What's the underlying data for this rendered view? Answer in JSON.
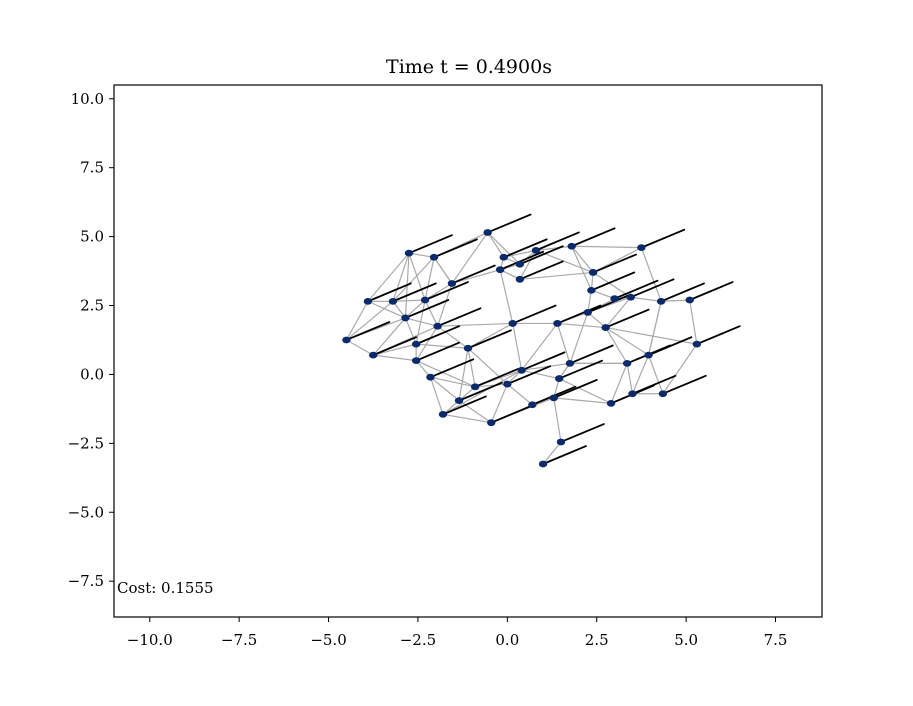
{
  "chart_data": {
    "type": "scatter",
    "title": "Time t = 0.4900s",
    "annotation": "Cost: 0.1555",
    "xlim": [
      -11.0,
      8.8
    ],
    "ylim": [
      -8.8,
      10.5
    ],
    "x_ticks": [
      -10.0,
      -7.5,
      -5.0,
      -2.5,
      0.0,
      2.5,
      5.0,
      7.5
    ],
    "x_tick_labels": [
      "−10.0",
      "−7.5",
      "−5.0",
      "−2.5",
      "0.0",
      "2.5",
      "5.0",
      "7.5"
    ],
    "y_ticks": [
      10.0,
      7.5,
      5.0,
      2.5,
      0.0,
      -2.5,
      -5.0,
      -7.5
    ],
    "y_tick_labels": [
      "10.0",
      "7.5",
      "5.0",
      "2.5",
      "0.0",
      "−2.5",
      "−5.0",
      "−7.5"
    ],
    "grid": false,
    "node_color": "#0b2a6b",
    "edge_color": "#aaaaaa",
    "arrow_color": "#000000",
    "nodes": [
      [
        -3.9,
        2.65
      ],
      [
        -3.2,
        2.65
      ],
      [
        -2.3,
        2.7
      ],
      [
        -1.55,
        3.3
      ],
      [
        -2.75,
        4.4
      ],
      [
        -2.05,
        4.25
      ],
      [
        -0.55,
        5.15
      ],
      [
        -0.1,
        4.25
      ],
      [
        0.8,
        4.5
      ],
      [
        1.8,
        4.65
      ],
      [
        3.75,
        4.6
      ],
      [
        -0.2,
        3.8
      ],
      [
        0.35,
        3.45
      ],
      [
        0.35,
        4.0
      ],
      [
        2.4,
        3.7
      ],
      [
        2.35,
        3.05
      ],
      [
        3.0,
        2.75
      ],
      [
        3.45,
        2.8
      ],
      [
        4.3,
        2.65
      ],
      [
        5.1,
        2.7
      ],
      [
        2.25,
        2.25
      ],
      [
        -2.85,
        2.05
      ],
      [
        -1.95,
        1.75
      ],
      [
        0.15,
        1.85
      ],
      [
        1.4,
        1.85
      ],
      [
        2.75,
        1.7
      ],
      [
        -4.5,
        1.25
      ],
      [
        -2.55,
        1.1
      ],
      [
        -1.1,
        0.95
      ],
      [
        -3.75,
        0.7
      ],
      [
        -2.55,
        0.5
      ],
      [
        1.75,
        0.4
      ],
      [
        3.35,
        0.4
      ],
      [
        3.95,
        0.7
      ],
      [
        5.3,
        1.1
      ],
      [
        -2.15,
        -0.1
      ],
      [
        -0.9,
        -0.45
      ],
      [
        0.4,
        0.15
      ],
      [
        1.45,
        -0.15
      ],
      [
        0.0,
        -0.35
      ],
      [
        -1.35,
        -0.95
      ],
      [
        -1.8,
        -1.45
      ],
      [
        3.5,
        -0.7
      ],
      [
        4.35,
        -0.7
      ],
      [
        2.9,
        -1.05
      ],
      [
        1.3,
        -0.85
      ],
      [
        0.7,
        -1.1
      ],
      [
        -0.45,
        -1.75
      ],
      [
        1.5,
        -2.45
      ],
      [
        1.0,
        -3.25
      ]
    ],
    "edges": [
      [
        26,
        0
      ],
      [
        26,
        1
      ],
      [
        26,
        21
      ],
      [
        26,
        29
      ],
      [
        0,
        1
      ],
      [
        0,
        21
      ],
      [
        0,
        4
      ],
      [
        1,
        2
      ],
      [
        1,
        21
      ],
      [
        1,
        4
      ],
      [
        1,
        5
      ],
      [
        2,
        3
      ],
      [
        2,
        5
      ],
      [
        2,
        22
      ],
      [
        2,
        21
      ],
      [
        2,
        27
      ],
      [
        3,
        5
      ],
      [
        3,
        6
      ],
      [
        3,
        11
      ],
      [
        3,
        22
      ],
      [
        4,
        5
      ],
      [
        4,
        21
      ],
      [
        5,
        6
      ],
      [
        5,
        3
      ],
      [
        6,
        7
      ],
      [
        6,
        13
      ],
      [
        7,
        8
      ],
      [
        7,
        13
      ],
      [
        7,
        11
      ],
      [
        8,
        9
      ],
      [
        8,
        14
      ],
      [
        8,
        12
      ],
      [
        9,
        10
      ],
      [
        9,
        14
      ],
      [
        9,
        15
      ],
      [
        10,
        14
      ],
      [
        10,
        18
      ],
      [
        11,
        13
      ],
      [
        11,
        12
      ],
      [
        12,
        14
      ],
      [
        13,
        8
      ],
      [
        11,
        23
      ],
      [
        14,
        15
      ],
      [
        14,
        17
      ],
      [
        15,
        16
      ],
      [
        15,
        20
      ],
      [
        16,
        17
      ],
      [
        16,
        20
      ],
      [
        17,
        18
      ],
      [
        18,
        19
      ],
      [
        18,
        33
      ],
      [
        19,
        34
      ],
      [
        17,
        25
      ],
      [
        20,
        24
      ],
      [
        20,
        25
      ],
      [
        21,
        22
      ],
      [
        21,
        27
      ],
      [
        21,
        29
      ],
      [
        22,
        23
      ],
      [
        22,
        28
      ],
      [
        22,
        30
      ],
      [
        23,
        24
      ],
      [
        23,
        37
      ],
      [
        23,
        28
      ],
      [
        24,
        31
      ],
      [
        24,
        25
      ],
      [
        25,
        32
      ],
      [
        25,
        33
      ],
      [
        25,
        34
      ],
      [
        27,
        29
      ],
      [
        27,
        30
      ],
      [
        27,
        28
      ],
      [
        29,
        30
      ],
      [
        30,
        35
      ],
      [
        30,
        36
      ],
      [
        28,
        36
      ],
      [
        28,
        39
      ],
      [
        28,
        40
      ],
      [
        35,
        36
      ],
      [
        35,
        41
      ],
      [
        35,
        40
      ],
      [
        36,
        39
      ],
      [
        36,
        40
      ],
      [
        37,
        39
      ],
      [
        37,
        38
      ],
      [
        37,
        31
      ],
      [
        38,
        31
      ],
      [
        38,
        44
      ],
      [
        38,
        45
      ],
      [
        39,
        46
      ],
      [
        39,
        47
      ],
      [
        40,
        41
      ],
      [
        40,
        47
      ],
      [
        41,
        47
      ],
      [
        41,
        37
      ],
      [
        31,
        32
      ],
      [
        32,
        42
      ],
      [
        32,
        44
      ],
      [
        33,
        42
      ],
      [
        33,
        43
      ],
      [
        34,
        43
      ],
      [
        42,
        43
      ],
      [
        42,
        44
      ],
      [
        44,
        45
      ],
      [
        45,
        46
      ],
      [
        46,
        47
      ],
      [
        45,
        48
      ],
      [
        48,
        49
      ],
      [
        29,
        22
      ],
      [
        4,
        2
      ],
      [
        11,
        12
      ],
      [
        33,
        18
      ],
      [
        32,
        31
      ],
      [
        20,
        31
      ],
      [
        31,
        38
      ],
      [
        36,
        37
      ],
      [
        47,
        45
      ],
      [
        17,
        20
      ],
      [
        24,
        37
      ]
    ],
    "arrow_direction": [
      1.2,
      0.65
    ]
  }
}
